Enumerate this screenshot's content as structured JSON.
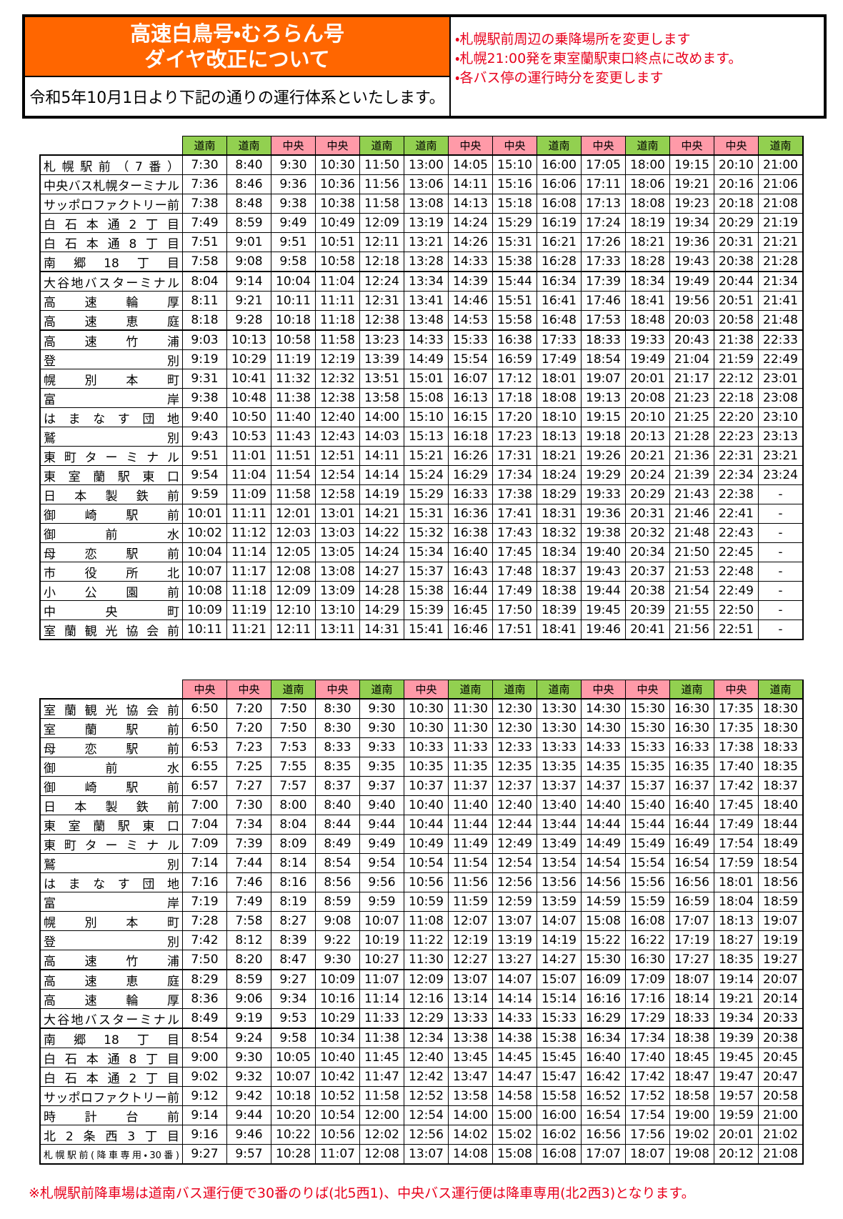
{
  "header": {
    "title_lines": [
      "高速白鳥号・むろらん号",
      "ダイヤ改正について"
    ],
    "subtitle": "令和5年10月1日より下記の通りの運行体系といたします。",
    "notes": [
      "・札幌駅前周辺の乗降場所を変更します",
      "・札幌21:00発を東室蘭駅東口終点に改めます。",
      "・各バス停の運行時分を変更します"
    ]
  },
  "operator_colors": {
    "道南": "#92d050",
    "中央": "#ff9aa8"
  },
  "tables": [
    {
      "operators": [
        "道南",
        "道南",
        "中央",
        "中央",
        "道南",
        "道南",
        "中央",
        "中央",
        "道南",
        "中央",
        "道南",
        "中央",
        "中央",
        "道南"
      ],
      "rows": [
        {
          "stop": "札幌駅前（7番）",
          "times": [
            "7:30",
            "8:40",
            "9:30",
            "10:30",
            "11:50",
            "13:00",
            "14:05",
            "15:10",
            "16:00",
            "17:05",
            "18:00",
            "19:15",
            "20:10",
            "21:00"
          ]
        },
        {
          "stop": "中央バス札幌ターミナル",
          "times": [
            "7:36",
            "8:46",
            "9:36",
            "10:36",
            "11:56",
            "13:06",
            "14:11",
            "15:16",
            "16:06",
            "17:11",
            "18:06",
            "19:21",
            "20:16",
            "21:06"
          ]
        },
        {
          "stop": "サッポロファクトリー前",
          "times": [
            "7:38",
            "8:48",
            "9:38",
            "10:38",
            "11:58",
            "13:08",
            "14:13",
            "15:18",
            "16:08",
            "17:13",
            "18:08",
            "19:23",
            "20:18",
            "21:08"
          ]
        },
        {
          "stop": "白石本通2丁目",
          "times": [
            "7:49",
            "8:59",
            "9:49",
            "10:49",
            "12:09",
            "13:19",
            "14:24",
            "15:29",
            "16:19",
            "17:24",
            "18:19",
            "19:34",
            "20:29",
            "21:19"
          ]
        },
        {
          "stop": "白石本通8丁目",
          "times": [
            "7:51",
            "9:01",
            "9:51",
            "10:51",
            "12:11",
            "13:21",
            "14:26",
            "15:31",
            "16:21",
            "17:26",
            "18:21",
            "19:36",
            "20:31",
            "21:21"
          ]
        },
        {
          "stop": "南郷18丁目",
          "times": [
            "7:58",
            "9:08",
            "9:58",
            "10:58",
            "12:18",
            "13:28",
            "14:33",
            "15:38",
            "16:28",
            "17:33",
            "18:28",
            "19:43",
            "20:38",
            "21:28"
          ]
        },
        {
          "stop": "大谷地バスターミナル",
          "times": [
            "8:04",
            "9:14",
            "10:04",
            "11:04",
            "12:24",
            "13:34",
            "14:39",
            "15:44",
            "16:34",
            "17:39",
            "18:34",
            "19:49",
            "20:44",
            "21:34"
          ]
        },
        {
          "stop": "高速輪厚",
          "times": [
            "8:11",
            "9:21",
            "10:11",
            "11:11",
            "12:31",
            "13:41",
            "14:46",
            "15:51",
            "16:41",
            "17:46",
            "18:41",
            "19:56",
            "20:51",
            "21:41"
          ]
        },
        {
          "stop": "高速恵庭",
          "times": [
            "8:18",
            "9:28",
            "10:18",
            "11:18",
            "12:38",
            "13:48",
            "14:53",
            "15:58",
            "16:48",
            "17:53",
            "18:48",
            "20:03",
            "20:58",
            "21:48"
          ]
        },
        {
          "stop": "高速竹浦",
          "times": [
            "9:03",
            "10:13",
            "10:58",
            "11:58",
            "13:23",
            "14:33",
            "15:33",
            "16:38",
            "17:33",
            "18:33",
            "19:33",
            "20:43",
            "21:38",
            "22:33"
          ]
        },
        {
          "stop": "登別",
          "times": [
            "9:19",
            "10:29",
            "11:19",
            "12:19",
            "13:39",
            "14:49",
            "15:54",
            "16:59",
            "17:49",
            "18:54",
            "19:49",
            "21:04",
            "21:59",
            "22:49"
          ]
        },
        {
          "stop": "幌別本町",
          "times": [
            "9:31",
            "10:41",
            "11:32",
            "12:32",
            "13:51",
            "15:01",
            "16:07",
            "17:12",
            "18:01",
            "19:07",
            "20:01",
            "21:17",
            "22:12",
            "23:01"
          ]
        },
        {
          "stop": "富岸",
          "times": [
            "9:38",
            "10:48",
            "11:38",
            "12:38",
            "13:58",
            "15:08",
            "16:13",
            "17:18",
            "18:08",
            "19:13",
            "20:08",
            "21:23",
            "22:18",
            "23:08"
          ]
        },
        {
          "stop": "はまなす団地",
          "times": [
            "9:40",
            "10:50",
            "11:40",
            "12:40",
            "14:00",
            "15:10",
            "16:15",
            "17:20",
            "18:10",
            "19:15",
            "20:10",
            "21:25",
            "22:20",
            "23:10"
          ]
        },
        {
          "stop": "鷲別",
          "times": [
            "9:43",
            "10:53",
            "11:43",
            "12:43",
            "14:03",
            "15:13",
            "16:18",
            "17:23",
            "18:13",
            "19:18",
            "20:13",
            "21:28",
            "22:23",
            "23:13"
          ]
        },
        {
          "stop": "東町ターミナル",
          "times": [
            "9:51",
            "11:01",
            "11:51",
            "12:51",
            "14:11",
            "15:21",
            "16:26",
            "17:31",
            "18:21",
            "19:26",
            "20:21",
            "21:36",
            "22:31",
            "23:21"
          ]
        },
        {
          "stop": "東室蘭駅東口",
          "times": [
            "9:54",
            "11:04",
            "11:54",
            "12:54",
            "14:14",
            "15:24",
            "16:29",
            "17:34",
            "18:24",
            "19:29",
            "20:24",
            "21:39",
            "22:34",
            "23:24"
          ]
        },
        {
          "stop": "日本製鉄前",
          "times": [
            "9:59",
            "11:09",
            "11:58",
            "12:58",
            "14:19",
            "15:29",
            "16:33",
            "17:38",
            "18:29",
            "19:33",
            "20:29",
            "21:43",
            "22:38",
            "-"
          ]
        },
        {
          "stop": "御崎駅前",
          "times": [
            "10:01",
            "11:11",
            "12:01",
            "13:01",
            "14:21",
            "15:31",
            "16:36",
            "17:41",
            "18:31",
            "19:36",
            "20:31",
            "21:46",
            "22:41",
            "-"
          ]
        },
        {
          "stop": "御前水",
          "times": [
            "10:02",
            "11:12",
            "12:03",
            "13:03",
            "14:22",
            "15:32",
            "16:38",
            "17:43",
            "18:32",
            "19:38",
            "20:32",
            "21:48",
            "22:43",
            "-"
          ]
        },
        {
          "stop": "母恋駅前",
          "times": [
            "10:04",
            "11:14",
            "12:05",
            "13:05",
            "14:24",
            "15:34",
            "16:40",
            "17:45",
            "18:34",
            "19:40",
            "20:34",
            "21:50",
            "22:45",
            "-"
          ]
        },
        {
          "stop": "市役所北",
          "times": [
            "10:07",
            "11:17",
            "12:08",
            "13:08",
            "14:27",
            "15:37",
            "16:43",
            "17:48",
            "18:37",
            "19:43",
            "20:37",
            "21:53",
            "22:48",
            "-"
          ]
        },
        {
          "stop": "小公園前",
          "times": [
            "10:08",
            "11:18",
            "12:09",
            "13:09",
            "14:28",
            "15:38",
            "16:44",
            "17:49",
            "18:38",
            "19:44",
            "20:38",
            "21:54",
            "22:49",
            "-"
          ]
        },
        {
          "stop": "中央町",
          "times": [
            "10:09",
            "11:19",
            "12:10",
            "13:10",
            "14:29",
            "15:39",
            "16:45",
            "17:50",
            "18:39",
            "19:45",
            "20:39",
            "21:55",
            "22:50",
            "-"
          ]
        },
        {
          "stop": "室蘭観光協会前",
          "times": [
            "10:11",
            "11:21",
            "12:11",
            "13:11",
            "14:31",
            "15:41",
            "16:46",
            "17:51",
            "18:41",
            "19:46",
            "20:41",
            "21:56",
            "22:51",
            "-"
          ]
        }
      ]
    },
    {
      "operators": [
        "中央",
        "中央",
        "道南",
        "中央",
        "道南",
        "中央",
        "道南",
        "道南",
        "道南",
        "中央",
        "中央",
        "道南",
        "中央",
        "道南"
      ],
      "rows": [
        {
          "stop": "室蘭観光協会前",
          "times": [
            "6:50",
            "7:20",
            "7:50",
            "8:30",
            "9:30",
            "10:30",
            "11:30",
            "12:30",
            "13:30",
            "14:30",
            "15:30",
            "16:30",
            "17:35",
            "18:30"
          ]
        },
        {
          "stop": "室蘭駅前",
          "times": [
            "6:50",
            "7:20",
            "7:50",
            "8:30",
            "9:30",
            "10:30",
            "11:30",
            "12:30",
            "13:30",
            "14:30",
            "15:30",
            "16:30",
            "17:35",
            "18:30"
          ]
        },
        {
          "stop": "母恋駅前",
          "times": [
            "6:53",
            "7:23",
            "7:53",
            "8:33",
            "9:33",
            "10:33",
            "11:33",
            "12:33",
            "13:33",
            "14:33",
            "15:33",
            "16:33",
            "17:38",
            "18:33"
          ]
        },
        {
          "stop": "御前水",
          "times": [
            "6:55",
            "7:25",
            "7:55",
            "8:35",
            "9:35",
            "10:35",
            "11:35",
            "12:35",
            "13:35",
            "14:35",
            "15:35",
            "16:35",
            "17:40",
            "18:35"
          ]
        },
        {
          "stop": "御崎駅前",
          "times": [
            "6:57",
            "7:27",
            "7:57",
            "8:37",
            "9:37",
            "10:37",
            "11:37",
            "12:37",
            "13:37",
            "14:37",
            "15:37",
            "16:37",
            "17:42",
            "18:37"
          ]
        },
        {
          "stop": "日本製鉄前",
          "times": [
            "7:00",
            "7:30",
            "8:00",
            "8:40",
            "9:40",
            "10:40",
            "11:40",
            "12:40",
            "13:40",
            "14:40",
            "15:40",
            "16:40",
            "17:45",
            "18:40"
          ]
        },
        {
          "stop": "東室蘭駅東口",
          "times": [
            "7:04",
            "7:34",
            "8:04",
            "8:44",
            "9:44",
            "10:44",
            "11:44",
            "12:44",
            "13:44",
            "14:44",
            "15:44",
            "16:44",
            "17:49",
            "18:44"
          ]
        },
        {
          "stop": "東町ターミナル",
          "times": [
            "7:09",
            "7:39",
            "8:09",
            "8:49",
            "9:49",
            "10:49",
            "11:49",
            "12:49",
            "13:49",
            "14:49",
            "15:49",
            "16:49",
            "17:54",
            "18:49"
          ]
        },
        {
          "stop": "鷲別",
          "times": [
            "7:14",
            "7:44",
            "8:14",
            "8:54",
            "9:54",
            "10:54",
            "11:54",
            "12:54",
            "13:54",
            "14:54",
            "15:54",
            "16:54",
            "17:59",
            "18:54"
          ]
        },
        {
          "stop": "はまなす団地",
          "times": [
            "7:16",
            "7:46",
            "8:16",
            "8:56",
            "9:56",
            "10:56",
            "11:56",
            "12:56",
            "13:56",
            "14:56",
            "15:56",
            "16:56",
            "18:01",
            "18:56"
          ]
        },
        {
          "stop": "富岸",
          "times": [
            "7:19",
            "7:49",
            "8:19",
            "8:59",
            "9:59",
            "10:59",
            "11:59",
            "12:59",
            "13:59",
            "14:59",
            "15:59",
            "16:59",
            "18:04",
            "18:59"
          ]
        },
        {
          "stop": "幌別本町",
          "times": [
            "7:28",
            "7:58",
            "8:27",
            "9:08",
            "10:07",
            "11:08",
            "12:07",
            "13:07",
            "14:07",
            "15:08",
            "16:08",
            "17:07",
            "18:13",
            "19:07"
          ]
        },
        {
          "stop": "登別",
          "times": [
            "7:42",
            "8:12",
            "8:39",
            "9:22",
            "10:19",
            "11:22",
            "12:19",
            "13:19",
            "14:19",
            "15:22",
            "16:22",
            "17:19",
            "18:27",
            "19:19"
          ]
        },
        {
          "stop": "高速竹浦",
          "times": [
            "7:50",
            "8:20",
            "8:47",
            "9:30",
            "10:27",
            "11:30",
            "12:27",
            "13:27",
            "14:27",
            "15:30",
            "16:30",
            "17:27",
            "18:35",
            "19:27"
          ]
        },
        {
          "stop": "高速恵庭",
          "times": [
            "8:29",
            "8:59",
            "9:27",
            "10:09",
            "11:07",
            "12:09",
            "13:07",
            "14:07",
            "15:07",
            "16:09",
            "17:09",
            "18:07",
            "19:14",
            "20:07"
          ]
        },
        {
          "stop": "高速輪厚",
          "times": [
            "8:36",
            "9:06",
            "9:34",
            "10:16",
            "11:14",
            "12:16",
            "13:14",
            "14:14",
            "15:14",
            "16:16",
            "17:16",
            "18:14",
            "19:21",
            "20:14"
          ]
        },
        {
          "stop": "大谷地バスターミナル",
          "times": [
            "8:49",
            "9:19",
            "9:53",
            "10:29",
            "11:33",
            "12:29",
            "13:33",
            "14:33",
            "15:33",
            "16:29",
            "17:29",
            "18:33",
            "19:34",
            "20:33"
          ]
        },
        {
          "stop": "南郷18丁目",
          "times": [
            "8:54",
            "9:24",
            "9:58",
            "10:34",
            "11:38",
            "12:34",
            "13:38",
            "14:38",
            "15:38",
            "16:34",
            "17:34",
            "18:38",
            "19:39",
            "20:38"
          ]
        },
        {
          "stop": "白石本通8丁目",
          "times": [
            "9:00",
            "9:30",
            "10:05",
            "10:40",
            "11:45",
            "12:40",
            "13:45",
            "14:45",
            "15:45",
            "16:40",
            "17:40",
            "18:45",
            "19:45",
            "20:45"
          ]
        },
        {
          "stop": "白石本通2丁目",
          "times": [
            "9:02",
            "9:32",
            "10:07",
            "10:42",
            "11:47",
            "12:42",
            "13:47",
            "14:47",
            "15:47",
            "16:42",
            "17:42",
            "18:47",
            "19:47",
            "20:47"
          ]
        },
        {
          "stop": "サッポロファクトリー前",
          "times": [
            "9:12",
            "9:42",
            "10:18",
            "10:52",
            "11:58",
            "12:52",
            "13:58",
            "14:58",
            "15:58",
            "16:52",
            "17:52",
            "18:58",
            "19:57",
            "20:58"
          ]
        },
        {
          "stop": "時計台前",
          "times": [
            "9:14",
            "9:44",
            "10:20",
            "10:54",
            "12:00",
            "12:54",
            "14:00",
            "15:00",
            "16:00",
            "16:54",
            "17:54",
            "19:00",
            "19:59",
            "21:00"
          ]
        },
        {
          "stop": "北2条西3丁目",
          "times": [
            "9:16",
            "9:46",
            "10:22",
            "10:56",
            "12:02",
            "12:56",
            "14:02",
            "15:02",
            "16:02",
            "16:56",
            "17:56",
            "19:02",
            "20:01",
            "21:02"
          ]
        },
        {
          "stop": "札幌駅前(降車専用・30番)",
          "times": [
            "9:27",
            "9:57",
            "10:28",
            "11:07",
            "12:08",
            "13:07",
            "14:08",
            "15:08",
            "16:08",
            "17:07",
            "18:07",
            "19:08",
            "20:12",
            "21:08"
          ]
        }
      ]
    }
  ],
  "footnote": "※札幌駅前降車場は道南バス運行便で30番のりば(北5西1)、中央バス運行便は降車専用(北2西3)となります。"
}
